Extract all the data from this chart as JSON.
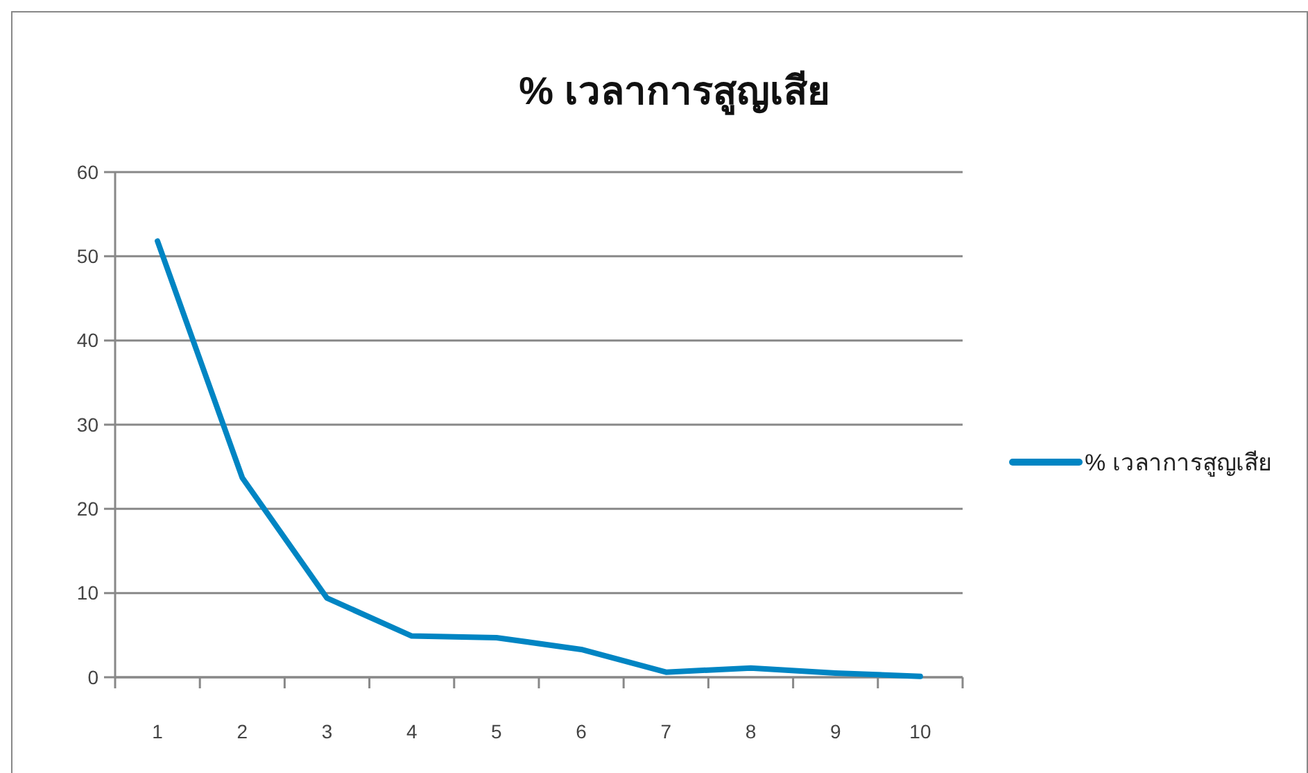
{
  "chart_data": {
    "type": "line",
    "title": "% เวลาการสูญเสีย",
    "categories": [
      "1",
      "2",
      "3",
      "4",
      "5",
      "6",
      "7",
      "8",
      "9",
      "10"
    ],
    "series": [
      {
        "name": "% เวลาการสูญเสีย",
        "color": "#0085c3",
        "values": [
          51.8,
          23.7,
          9.4,
          4.9,
          4.7,
          3.3,
          0.6,
          1.1,
          0.5,
          0.1
        ]
      }
    ],
    "ylim": [
      0,
      60
    ],
    "yticks": [
      0,
      10,
      20,
      30,
      40,
      50,
      60
    ],
    "grid": "y",
    "legend": "right",
    "marker": "none",
    "line_style": "solid"
  }
}
